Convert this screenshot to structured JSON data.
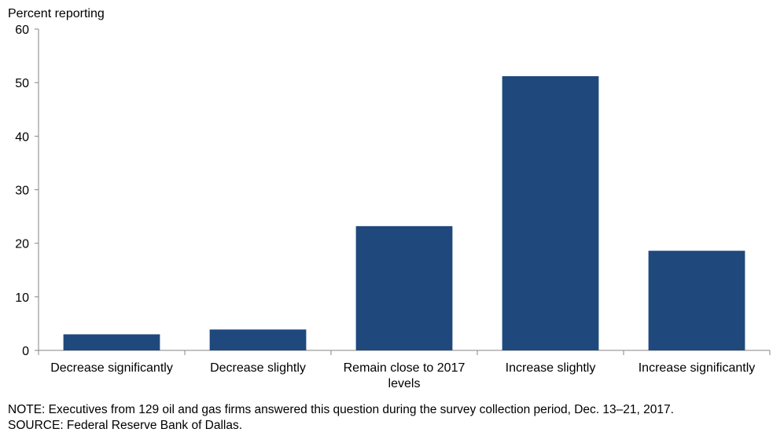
{
  "chart_data": {
    "type": "bar",
    "ylabel": "Percent reporting",
    "ylim": [
      0,
      60
    ],
    "yticks": [
      0,
      10,
      20,
      30,
      40,
      50,
      60
    ],
    "categories": [
      [
        "Decrease significantly"
      ],
      [
        "Decrease slightly"
      ],
      [
        "Remain close to 2017",
        "levels"
      ],
      [
        "Increase slightly"
      ],
      [
        "Increase significantly"
      ]
    ],
    "values": [
      3.0,
      3.9,
      23.2,
      51.2,
      18.6
    ],
    "bar_color": "#1f497d",
    "grid": false,
    "legend": "none"
  },
  "notes": {
    "note": "NOTE:  Executives  from  129  oil  and  gas  firms  answered  this  question  during  the  survey  collection  period,  Dec.  13–21,  2017.",
    "source": "SOURCE:  Federal  Reserve  Bank  of  Dallas."
  }
}
